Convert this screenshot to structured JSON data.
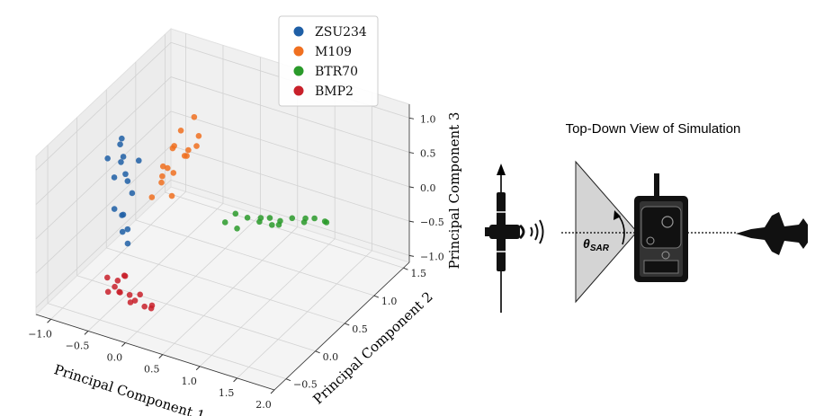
{
  "chart_data": {
    "type": "scatter3d",
    "xlabel": "Principal Component 1",
    "ylabel": "Principal Component 2",
    "zlabel": "Principal Component 3",
    "xlim": [
      -1.2,
      2.0
    ],
    "ylim": [
      -0.7,
      1.6
    ],
    "zlim": [
      -1.1,
      1.2
    ],
    "xticks": [
      {
        "value": -1,
        "label": "−1.0"
      },
      {
        "value": -0.5,
        "label": "−0.5"
      },
      {
        "value": 0,
        "label": "0.0"
      },
      0.5,
      {
        "value": 1,
        "label": "1.0"
      },
      1.5,
      {
        "value": 2,
        "label": "2.0"
      }
    ],
    "yticks": [
      {
        "value": -0.5,
        "label": "−0.5"
      },
      {
        "value": 0,
        "label": "0.0"
      },
      0.5,
      {
        "value": 1,
        "label": "1.0"
      },
      1.5
    ],
    "zticks": [
      {
        "value": -1,
        "label": "−1.0"
      },
      {
        "value": -0.5,
        "label": "−0.5"
      },
      {
        "value": 0,
        "label": "0.0"
      },
      0.5,
      {
        "value": 1,
        "label": "1.0"
      }
    ],
    "grid": true,
    "series": [
      {
        "name": "ZSU234",
        "color": "#1f5fa6",
        "x": [
          -0.6,
          -0.7,
          -0.5,
          -0.65,
          -0.55,
          -0.75,
          -0.6,
          -0.5,
          -0.62,
          -0.58,
          -0.66,
          -0.55,
          -0.6,
          -0.52,
          -0.7,
          -0.45
        ],
        "y": [
          0.0,
          0.1,
          -0.1,
          0.05,
          0.0,
          -0.05,
          0.1,
          0.05,
          -0.1,
          0.0,
          0.08,
          -0.05,
          0.1,
          0.0,
          0.0,
          0.1
        ],
        "z": [
          1.1,
          0.9,
          0.95,
          0.7,
          0.6,
          0.8,
          0.4,
          0.3,
          0.15,
          0.0,
          -0.1,
          -0.2,
          -0.3,
          -0.4,
          0.5,
          0.75
        ]
      },
      {
        "name": "M109",
        "color": "#f07020",
        "x": [
          -0.1,
          -0.2,
          0.0,
          -0.25,
          -0.1,
          -0.35,
          -0.2,
          -0.4,
          -0.3,
          -0.45,
          -0.5,
          -0.55,
          -0.4,
          -0.15,
          0.05,
          -0.3
        ],
        "y": [
          0.6,
          0.5,
          0.55,
          0.45,
          0.5,
          0.55,
          0.6,
          0.45,
          0.5,
          0.5,
          0.55,
          0.45,
          0.6,
          0.5,
          0.45,
          0.4
        ],
        "z": [
          1.1,
          0.95,
          0.9,
          0.75,
          0.7,
          0.6,
          0.5,
          0.4,
          0.3,
          0.2,
          0.05,
          -0.1,
          -0.15,
          0.6,
          0.85,
          0.45
        ]
      },
      {
        "name": "BTR70",
        "color": "#2a9a2a",
        "x": [
          0.0,
          0.1,
          0.2,
          0.3,
          0.4,
          0.5,
          0.6,
          0.7,
          0.8,
          0.9,
          1.0,
          1.1,
          1.2,
          1.3,
          1.4,
          0.55
        ],
        "y": [
          1.0,
          1.05,
          0.95,
          1.0,
          1.1,
          0.95,
          1.0,
          1.05,
          0.9,
          1.0,
          1.1,
          0.95,
          1.0,
          1.05,
          0.95,
          1.1
        ],
        "z": [
          -0.72,
          -0.6,
          -0.7,
          -0.55,
          -0.6,
          -0.5,
          -0.45,
          -0.5,
          -0.4,
          -0.35,
          -0.4,
          -0.3,
          -0.25,
          -0.3,
          -0.2,
          -0.65
        ]
      },
      {
        "name": "BMP2",
        "color": "#c8202a",
        "x": [
          -0.4,
          -0.3,
          -0.2,
          -0.1,
          0.0,
          0.1,
          -0.25,
          -0.15,
          -0.05,
          0.15,
          -0.35,
          0.05,
          -0.2,
          0.2,
          -0.3
        ],
        "y": [
          -0.5,
          -0.45,
          -0.55,
          -0.5,
          -0.45,
          -0.5,
          -0.4,
          -0.6,
          -0.55,
          -0.45,
          -0.55,
          -0.6,
          -0.45,
          -0.5,
          -0.5
        ],
        "z": [
          -0.45,
          -0.5,
          -0.55,
          -0.6,
          -0.6,
          -0.7,
          -0.45,
          -0.5,
          -0.65,
          -0.75,
          -0.6,
          -0.55,
          -0.4,
          -0.65,
          -0.55
        ]
      }
    ]
  },
  "diagram": {
    "title": "Top-Down View of Simulation",
    "angle_symbol": "θ",
    "angle_subscript": "SAR"
  }
}
